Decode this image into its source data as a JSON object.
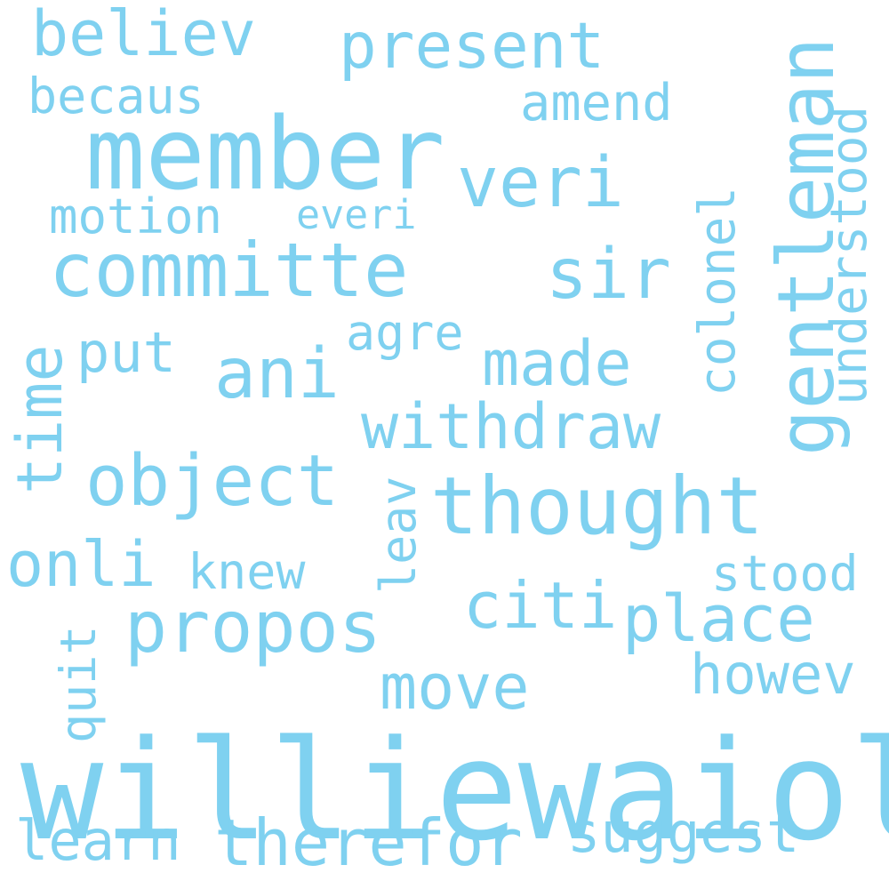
{
  "word_cloud": {
    "color": "#7fd1f0",
    "background": "#ffffff",
    "words": [
      {
        "id": "williewaiola",
        "text": "williewaiola",
        "orientation": "horizontal"
      },
      {
        "id": "member",
        "text": "member",
        "orientation": "horizontal"
      },
      {
        "id": "committe",
        "text": "committe",
        "orientation": "horizontal"
      },
      {
        "id": "thought",
        "text": "thought",
        "orientation": "horizontal"
      },
      {
        "id": "gentleman",
        "text": "gentleman",
        "orientation": "vertical"
      },
      {
        "id": "present",
        "text": "present",
        "orientation": "horizontal"
      },
      {
        "id": "believ",
        "text": "believ",
        "orientation": "horizontal"
      },
      {
        "id": "object",
        "text": "object",
        "orientation": "horizontal"
      },
      {
        "id": "propos",
        "text": "propos",
        "orientation": "horizontal"
      },
      {
        "id": "veri",
        "text": "veri",
        "orientation": "horizontal"
      },
      {
        "id": "sir",
        "text": "sir",
        "orientation": "horizontal"
      },
      {
        "id": "ani",
        "text": "ani",
        "orientation": "horizontal"
      },
      {
        "id": "onli",
        "text": "onli",
        "orientation": "horizontal"
      },
      {
        "id": "withdraw",
        "text": "withdraw",
        "orientation": "horizontal"
      },
      {
        "id": "made",
        "text": "made",
        "orientation": "horizontal"
      },
      {
        "id": "citi",
        "text": "citi",
        "orientation": "horizontal"
      },
      {
        "id": "place",
        "text": "place",
        "orientation": "horizontal"
      },
      {
        "id": "move",
        "text": "move",
        "orientation": "horizontal"
      },
      {
        "id": "therefor",
        "text": "therefor",
        "orientation": "horizontal"
      },
      {
        "id": "time",
        "text": "time",
        "orientation": "vertical"
      },
      {
        "id": "colonel",
        "text": "colonel",
        "orientation": "vertical"
      },
      {
        "id": "understood",
        "text": "understood",
        "orientation": "vertical"
      },
      {
        "id": "put",
        "text": "put",
        "orientation": "horizontal"
      },
      {
        "id": "amend",
        "text": "amend",
        "orientation": "horizontal"
      },
      {
        "id": "becaus",
        "text": "becaus",
        "orientation": "horizontal"
      },
      {
        "id": "motion",
        "text": "motion",
        "orientation": "horizontal"
      },
      {
        "id": "everi",
        "text": "everi",
        "orientation": "horizontal"
      },
      {
        "id": "agre",
        "text": "agre",
        "orientation": "horizontal"
      },
      {
        "id": "leav",
        "text": "leav",
        "orientation": "vertical"
      },
      {
        "id": "knew",
        "text": "knew",
        "orientation": "horizontal"
      },
      {
        "id": "stood",
        "text": "stood",
        "orientation": "horizontal"
      },
      {
        "id": "howev",
        "text": "howev",
        "orientation": "horizontal"
      },
      {
        "id": "quit",
        "text": "quit",
        "orientation": "vertical"
      },
      {
        "id": "learn",
        "text": "learn",
        "orientation": "horizontal"
      },
      {
        "id": "suggest",
        "text": "suggest",
        "orientation": "horizontal"
      }
    ]
  }
}
